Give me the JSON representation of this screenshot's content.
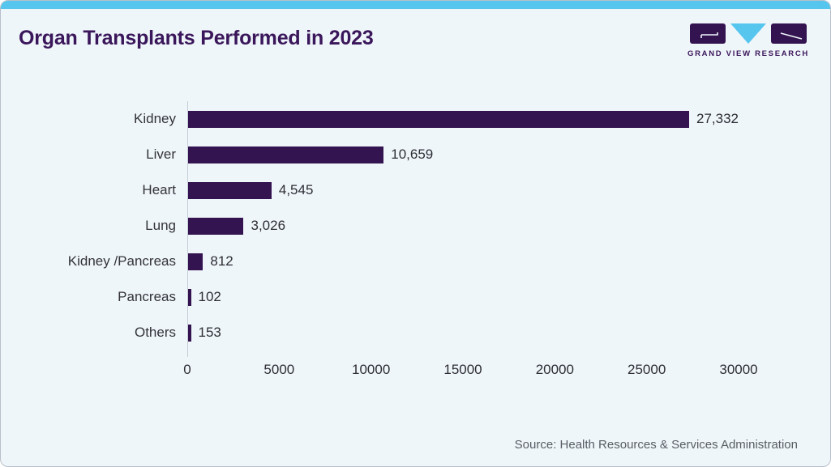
{
  "header": {
    "title": "Organ Transplants Performed in 2023",
    "logo_wordmark": "GRAND VIEW RESEARCH"
  },
  "colors": {
    "accent_strip": "#57c6ee",
    "bar": "#341450",
    "title": "#3a165a",
    "background": "#eff6fa",
    "axis_line": "#c5ccd4",
    "text": "#2d2d36",
    "source_text": "#585d64",
    "logo_purple": "#341450",
    "logo_cyan": "#57c6ee"
  },
  "chart_data": {
    "type": "bar",
    "orientation": "horizontal",
    "title": "Organ Transplants Performed in 2023",
    "categories": [
      "Kidney",
      "Liver",
      "Heart",
      "Lung",
      "Kidney /Pancreas",
      "Pancreas",
      "Others"
    ],
    "values": [
      27332,
      10659,
      4545,
      3026,
      812,
      102,
      153
    ],
    "value_labels": [
      "27,332",
      "10,659",
      "4,545",
      "3,026",
      "812",
      "102",
      "153"
    ],
    "xlabel": "",
    "ylabel": "",
    "xlim": [
      0,
      30000
    ],
    "x_ticks": [
      0,
      5000,
      10000,
      15000,
      20000,
      25000,
      30000
    ],
    "x_tick_labels": [
      "0",
      "5000",
      "10000",
      "15000",
      "20000",
      "25000",
      "30000"
    ],
    "grid": false,
    "legend": false,
    "bar_color": "#341450"
  },
  "footer": {
    "source": "Source: Health Resources & Services Administration"
  }
}
